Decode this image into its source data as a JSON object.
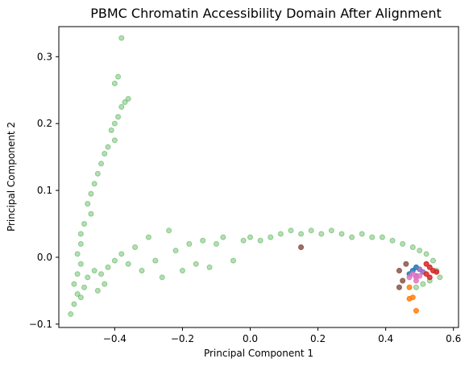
{
  "chart_data": {
    "type": "scatter",
    "title": "PBMC Chromatin Accessibility Domain After Alignment",
    "xlabel": "Principal Component 1",
    "ylabel": "Principal Component 2",
    "xlim": [
      -0.565,
      0.615
    ],
    "ylim": [
      -0.105,
      0.345
    ],
    "xticks": [
      -0.4,
      -0.2,
      0.0,
      0.2,
      0.4,
      0.6
    ],
    "yticks": [
      -0.1,
      0.0,
      0.1,
      0.2,
      0.3
    ],
    "xtick_labels": [
      "−0.4",
      "−0.2",
      "0.0",
      "0.2",
      "0.4",
      "0.6"
    ],
    "ytick_labels": [
      "−0.1",
      "0.0",
      "0.1",
      "0.2",
      "0.3"
    ],
    "grid": false,
    "legend": "none",
    "series": [
      {
        "color": "#2ca02c",
        "opacity": 0.35,
        "points": [
          [
            -0.38,
            0.328
          ],
          [
            -0.39,
            0.27
          ],
          [
            -0.4,
            0.26
          ],
          [
            -0.36,
            0.237
          ],
          [
            -0.37,
            0.232
          ],
          [
            -0.38,
            0.225
          ],
          [
            -0.39,
            0.21
          ],
          [
            -0.4,
            0.2
          ],
          [
            -0.41,
            0.19
          ],
          [
            -0.4,
            0.175
          ],
          [
            -0.42,
            0.165
          ],
          [
            -0.43,
            0.155
          ],
          [
            -0.44,
            0.14
          ],
          [
            -0.45,
            0.125
          ],
          [
            -0.46,
            0.11
          ],
          [
            -0.47,
            0.095
          ],
          [
            -0.48,
            0.08
          ],
          [
            -0.47,
            0.065
          ],
          [
            -0.49,
            0.05
          ],
          [
            -0.5,
            0.035
          ],
          [
            -0.5,
            0.02
          ],
          [
            -0.51,
            0.005
          ],
          [
            -0.5,
            -0.01
          ],
          [
            -0.51,
            -0.025
          ],
          [
            -0.52,
            -0.04
          ],
          [
            -0.51,
            -0.055
          ],
          [
            -0.52,
            -0.07
          ],
          [
            -0.53,
            -0.085
          ],
          [
            -0.5,
            -0.06
          ],
          [
            -0.49,
            -0.045
          ],
          [
            -0.48,
            -0.03
          ],
          [
            -0.46,
            -0.02
          ],
          [
            -0.44,
            -0.025
          ],
          [
            -0.43,
            -0.04
          ],
          [
            -0.45,
            -0.05
          ],
          [
            -0.42,
            -0.015
          ],
          [
            -0.4,
            -0.005
          ],
          [
            -0.38,
            0.005
          ],
          [
            -0.36,
            -0.01
          ],
          [
            -0.34,
            0.015
          ],
          [
            -0.32,
            -0.02
          ],
          [
            -0.3,
            0.03
          ],
          [
            -0.28,
            -0.005
          ],
          [
            -0.26,
            -0.03
          ],
          [
            -0.24,
            0.04
          ],
          [
            -0.22,
            0.01
          ],
          [
            -0.2,
            -0.02
          ],
          [
            -0.18,
            0.02
          ],
          [
            -0.16,
            -0.01
          ],
          [
            -0.14,
            0.025
          ],
          [
            -0.12,
            -0.015
          ],
          [
            -0.1,
            0.02
          ],
          [
            -0.08,
            0.03
          ],
          [
            -0.05,
            -0.005
          ],
          [
            -0.02,
            0.025
          ],
          [
            0.0,
            0.03
          ],
          [
            0.03,
            0.025
          ],
          [
            0.06,
            0.03
          ],
          [
            0.09,
            0.035
          ],
          [
            0.12,
            0.04
          ],
          [
            0.15,
            0.035
          ],
          [
            0.18,
            0.04
          ],
          [
            0.21,
            0.035
          ],
          [
            0.24,
            0.04
          ],
          [
            0.27,
            0.035
          ],
          [
            0.3,
            0.03
          ],
          [
            0.33,
            0.035
          ],
          [
            0.36,
            0.03
          ],
          [
            0.39,
            0.03
          ],
          [
            0.42,
            0.025
          ],
          [
            0.45,
            0.02
          ],
          [
            0.48,
            0.015
          ],
          [
            0.5,
            0.01
          ],
          [
            0.52,
            0.005
          ],
          [
            0.54,
            -0.005
          ],
          [
            0.55,
            -0.02
          ],
          [
            0.56,
            -0.03
          ],
          [
            0.53,
            -0.035
          ],
          [
            0.51,
            -0.04
          ],
          [
            0.49,
            -0.045
          ]
        ]
      },
      {
        "color": "#ff7f0e",
        "opacity": 0.85,
        "points": [
          [
            0.47,
            -0.045
          ],
          [
            0.48,
            -0.06
          ],
          [
            0.49,
            -0.08
          ],
          [
            0.47,
            -0.062
          ]
        ]
      },
      {
        "color": "#8c564b",
        "opacity": 0.85,
        "points": [
          [
            0.15,
            0.015
          ],
          [
            0.44,
            -0.02
          ],
          [
            0.45,
            -0.035
          ],
          [
            0.44,
            -0.045
          ],
          [
            0.46,
            -0.01
          ]
        ]
      },
      {
        "color": "#1f77b4",
        "opacity": 0.85,
        "points": [
          [
            0.48,
            -0.02
          ],
          [
            0.49,
            -0.015
          ],
          [
            0.47,
            -0.025
          ]
        ]
      },
      {
        "color": "#9467bd",
        "opacity": 0.85,
        "points": [
          [
            0.5,
            -0.018
          ],
          [
            0.51,
            -0.022
          ],
          [
            0.49,
            -0.028
          ]
        ]
      },
      {
        "color": "#e377c2",
        "opacity": 0.85,
        "points": [
          [
            0.48,
            -0.025
          ],
          [
            0.49,
            -0.03
          ],
          [
            0.5,
            -0.028
          ],
          [
            0.47,
            -0.03
          ],
          [
            0.49,
            -0.035
          ]
        ]
      },
      {
        "color": "#d62728",
        "opacity": 0.85,
        "points": [
          [
            0.52,
            -0.01
          ],
          [
            0.53,
            -0.015
          ],
          [
            0.54,
            -0.02
          ],
          [
            0.52,
            -0.025
          ],
          [
            0.55,
            -0.022
          ],
          [
            0.53,
            -0.03
          ]
        ]
      }
    ]
  }
}
